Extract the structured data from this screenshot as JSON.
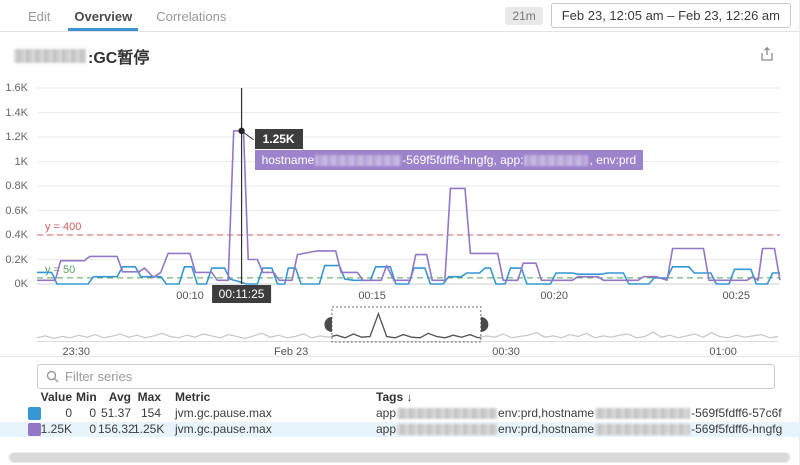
{
  "header": {
    "tabs": [
      {
        "label": "Edit"
      },
      {
        "label": "Overview"
      },
      {
        "label": "Correlations"
      }
    ],
    "duration_badge": "21m",
    "date_range": "Feb 23, 12:05 am – Feb 23, 12:26 am"
  },
  "title": {
    "suffix": ":GC暂停"
  },
  "icons": {
    "share": "share-export-icon",
    "search": "magnifier-icon"
  },
  "colors": {
    "blue_series": "#3598d2",
    "purple_series": "#9377c6",
    "marker_red": "#cf5f5f",
    "marker_green": "#55a25a",
    "tooltip_purple": "#9d83cb",
    "tab_accent": "#3f95d2",
    "row_highlight": "#e8f4fb"
  },
  "tooltip": {
    "p1": "hostname",
    "p2": "-569f5fdff6-hngfg, app:",
    "p3": ", env:prd"
  },
  "chart_data": {
    "type": "line",
    "x_unit": "time of day (hh:mm)",
    "x_range_minutes": [
      5.8,
      26.2
    ],
    "ylim": [
      0,
      1600
    ],
    "y_ticks": [
      "0K",
      "0.2K",
      "0.4K",
      "0.6K",
      "0.8K",
      "1K",
      "1.2K",
      "1.4K",
      "1.6K"
    ],
    "y_tick_values": [
      0,
      200,
      400,
      600,
      800,
      1000,
      1200,
      1400,
      1600
    ],
    "x_ticks": [
      {
        "label": "00:10",
        "t": 10
      },
      {
        "label": "00:15",
        "t": 15
      },
      {
        "label": "00:20",
        "t": 20
      },
      {
        "label": "00:25",
        "t": 25
      }
    ],
    "markers": [
      {
        "label": "y = 400",
        "value": 400,
        "color": "#cf5f5f"
      },
      {
        "label": "y = 50",
        "value": 50,
        "color": "#55a25a"
      }
    ],
    "cursor": {
      "t": 11.4167,
      "value": 1250,
      "time_label": "00:11:25",
      "value_label": "1.25K"
    },
    "legend_position": "table-below",
    "grid": true,
    "series": [
      {
        "name": "jvm.gc.pause.max hostname …-569f5fdff6-57c6f",
        "color": "#3598d2",
        "points": [
          [
            5.8,
            95
          ],
          [
            6.2,
            95
          ],
          [
            6.35,
            0
          ],
          [
            7.2,
            0
          ],
          [
            7.35,
            60
          ],
          [
            8.0,
            60
          ],
          [
            8.15,
            140
          ],
          [
            8.5,
            140
          ],
          [
            8.65,
            60
          ],
          [
            9.2,
            60
          ],
          [
            9.35,
            0
          ],
          [
            9.7,
            0
          ],
          [
            9.85,
            140
          ],
          [
            10.05,
            140
          ],
          [
            10.2,
            0
          ],
          [
            10.45,
            0
          ],
          [
            10.6,
            130
          ],
          [
            10.95,
            130
          ],
          [
            11.1,
            40
          ],
          [
            11.35,
            20
          ],
          [
            11.55,
            0
          ],
          [
            11.85,
            0
          ],
          [
            12.0,
            130
          ],
          [
            12.25,
            130
          ],
          [
            12.4,
            0
          ],
          [
            12.6,
            0
          ],
          [
            12.7,
            130
          ],
          [
            12.9,
            130
          ],
          [
            13.05,
            0
          ],
          [
            13.55,
            0
          ],
          [
            13.7,
            150
          ],
          [
            14.1,
            150
          ],
          [
            14.25,
            40
          ],
          [
            14.5,
            30
          ],
          [
            14.95,
            30
          ],
          [
            15.1,
            140
          ],
          [
            15.5,
            140
          ],
          [
            15.65,
            0
          ],
          [
            16.0,
            0
          ],
          [
            16.15,
            130
          ],
          [
            16.45,
            130
          ],
          [
            16.6,
            0
          ],
          [
            16.95,
            0
          ],
          [
            17.1,
            60
          ],
          [
            17.45,
            60
          ],
          [
            17.6,
            90
          ],
          [
            17.95,
            90
          ],
          [
            18.1,
            130
          ],
          [
            18.25,
            130
          ],
          [
            18.4,
            0
          ],
          [
            18.65,
            0
          ],
          [
            18.8,
            130
          ],
          [
            19.1,
            130
          ],
          [
            19.25,
            0
          ],
          [
            19.9,
            0
          ],
          [
            20.05,
            90
          ],
          [
            20.5,
            90
          ],
          [
            20.65,
            80
          ],
          [
            21.3,
            80
          ],
          [
            21.45,
            90
          ],
          [
            21.9,
            90
          ],
          [
            22.05,
            0
          ],
          [
            22.6,
            0
          ],
          [
            22.75,
            50
          ],
          [
            23.1,
            50
          ],
          [
            23.25,
            140
          ],
          [
            23.7,
            140
          ],
          [
            23.85,
            90
          ],
          [
            24.3,
            90
          ],
          [
            24.45,
            0
          ],
          [
            24.8,
            0
          ],
          [
            24.95,
            120
          ],
          [
            25.4,
            120
          ],
          [
            25.55,
            0
          ],
          [
            25.85,
            0
          ],
          [
            26.0,
            90
          ],
          [
            26.2,
            90
          ]
        ]
      },
      {
        "name": "jvm.gc.pause.max hostname …-569f5fdff6-hngfg",
        "color": "#9377c6",
        "points": [
          [
            5.8,
            30
          ],
          [
            6.3,
            30
          ],
          [
            6.45,
            190
          ],
          [
            7.1,
            190
          ],
          [
            7.25,
            225
          ],
          [
            8.0,
            225
          ],
          [
            8.15,
            100
          ],
          [
            8.6,
            100
          ],
          [
            8.75,
            130
          ],
          [
            9.0,
            55
          ],
          [
            9.2,
            95
          ],
          [
            9.4,
            250
          ],
          [
            10.0,
            250
          ],
          [
            10.15,
            95
          ],
          [
            10.6,
            95
          ],
          [
            10.75,
            30
          ],
          [
            11.05,
            30
          ],
          [
            11.2,
            1250
          ],
          [
            11.47,
            1250
          ],
          [
            11.6,
            200
          ],
          [
            11.85,
            200
          ],
          [
            12.0,
            95
          ],
          [
            12.3,
            95
          ],
          [
            12.45,
            30
          ],
          [
            12.8,
            30
          ],
          [
            12.95,
            240
          ],
          [
            13.5,
            270
          ],
          [
            14.0,
            270
          ],
          [
            14.15,
            95
          ],
          [
            14.6,
            95
          ],
          [
            14.75,
            30
          ],
          [
            15.25,
            30
          ],
          [
            15.4,
            150
          ],
          [
            15.6,
            30
          ],
          [
            16.05,
            30
          ],
          [
            16.2,
            240
          ],
          [
            16.5,
            240
          ],
          [
            16.65,
            30
          ],
          [
            17.0,
            30
          ],
          [
            17.15,
            780
          ],
          [
            17.55,
            780
          ],
          [
            17.7,
            250
          ],
          [
            18.45,
            250
          ],
          [
            18.6,
            30
          ],
          [
            19.0,
            30
          ],
          [
            19.15,
            170
          ],
          [
            19.5,
            170
          ],
          [
            19.65,
            30
          ],
          [
            20.5,
            30
          ],
          [
            20.65,
            60
          ],
          [
            21.2,
            60
          ],
          [
            21.35,
            30
          ],
          [
            22.3,
            30
          ],
          [
            22.45,
            60
          ],
          [
            22.8,
            60
          ],
          [
            23.1,
            30
          ],
          [
            23.25,
            290
          ],
          [
            24.1,
            290
          ],
          [
            24.25,
            30
          ],
          [
            25.3,
            30
          ],
          [
            25.45,
            60
          ],
          [
            25.6,
            30
          ],
          [
            25.72,
            290
          ],
          [
            26.05,
            290
          ],
          [
            26.2,
            30
          ]
        ]
      }
    ]
  },
  "minimap": {
    "selection": [
      0.398,
      0.599
    ],
    "labels": [
      {
        "label": "23:30",
        "f": 0.053
      },
      {
        "label": "Feb 23",
        "f": 0.343
      },
      {
        "label": "00:30",
        "f": 0.633
      },
      {
        "label": "01:00",
        "f": 0.926
      }
    ],
    "heights": [
      0.1,
      0.16,
      0.08,
      0.14,
      0.1,
      0.18,
      0.12,
      0.2,
      0.1,
      0.15,
      0.22,
      0.12,
      0.18,
      0.1,
      0.16,
      0.24,
      0.14,
      0.1,
      0.18,
      0.12,
      0.22,
      0.16,
      0.1,
      0.2,
      0.14,
      0.08,
      0.16,
      0.24,
      0.12,
      0.18,
      0.1,
      0.14,
      0.22,
      0.1,
      0.16,
      0.12,
      0.18,
      0.1,
      0.22,
      0.12,
      0.14,
      0.85,
      0.14,
      0.1,
      0.2,
      0.12,
      0.1,
      0.24,
      0.14,
      0.1,
      0.18,
      0.12,
      0.2,
      0.1,
      0.16,
      0.12,
      0.22,
      0.1,
      0.14,
      0.18,
      0.26,
      0.12,
      0.16,
      0.1,
      0.2,
      0.14,
      0.24,
      0.1,
      0.16,
      0.12,
      0.18,
      0.22,
      0.1,
      0.14,
      0.28,
      0.12,
      0.18,
      0.1,
      0.16,
      0.22,
      0.12,
      0.26,
      0.14,
      0.1,
      0.18,
      0.12,
      0.16,
      0.2,
      0.1,
      0.14
    ]
  },
  "filter": {
    "placeholder": "Filter series"
  },
  "table": {
    "columns": [
      "Value",
      "Min",
      "Avg",
      "Max",
      "Metric",
      "Tags ↓"
    ],
    "rows": [
      {
        "color": "#3598d2",
        "value": "0",
        "min": "0",
        "avg": "51.37",
        "max": "154",
        "metric": "jvm.gc.pause.max",
        "tags": {
          "p1": "app",
          "p2": "env:prd,hostname",
          "p3": "-569f5fdff6-57c6f"
        }
      },
      {
        "color": "#9377c6",
        "value": "1.25K",
        "min": "0",
        "avg": "156.32",
        "max": "1.25K",
        "metric": "jvm.gc.pause.max",
        "tags": {
          "p1": "app",
          "p2": "env:prd,hostname",
          "p3": "-569f5fdff6-hngfg"
        }
      }
    ]
  }
}
